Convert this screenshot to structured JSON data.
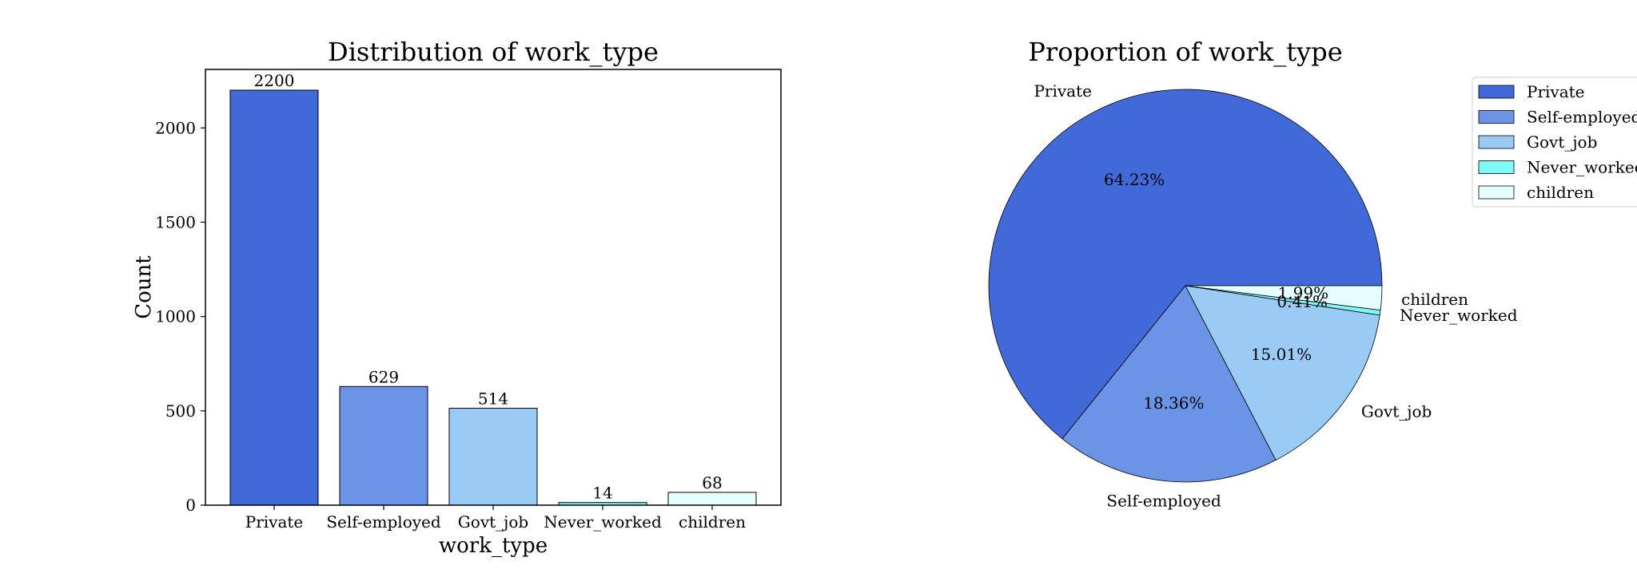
{
  "colors": {
    "Private": "#4169d8",
    "Self-employed": "#6b93e6",
    "Govt_job": "#99cbf5",
    "Never_worked": "#7ff9f5",
    "children": "#e5ffff"
  },
  "chart_data": [
    {
      "type": "bar",
      "title": "Distribution of work_type",
      "xlabel": "work_type",
      "ylabel": "Count",
      "categories": [
        "Private",
        "Self-employed",
        "Govt_job",
        "Never_worked",
        "children"
      ],
      "values": [
        2200,
        629,
        514,
        14,
        68
      ],
      "ylim": [
        0,
        2310
      ],
      "yticks": [
        0,
        500,
        1000,
        1500,
        2000
      ],
      "grid": false
    },
    {
      "type": "pie",
      "title": "Proportion of work_type",
      "labels": [
        "Private",
        "Self-employed",
        "Govt_job",
        "Never_worked",
        "children"
      ],
      "values": [
        2200,
        629,
        514,
        14,
        68
      ],
      "percent_labels": [
        "64.23%",
        "18.36%",
        "15.01%",
        "0.41%",
        "1.99%"
      ],
      "legend": [
        "Private",
        "Self-employed",
        "Govt_job",
        "Never_worked",
        "children"
      ],
      "legend_placement": "top-right"
    }
  ]
}
